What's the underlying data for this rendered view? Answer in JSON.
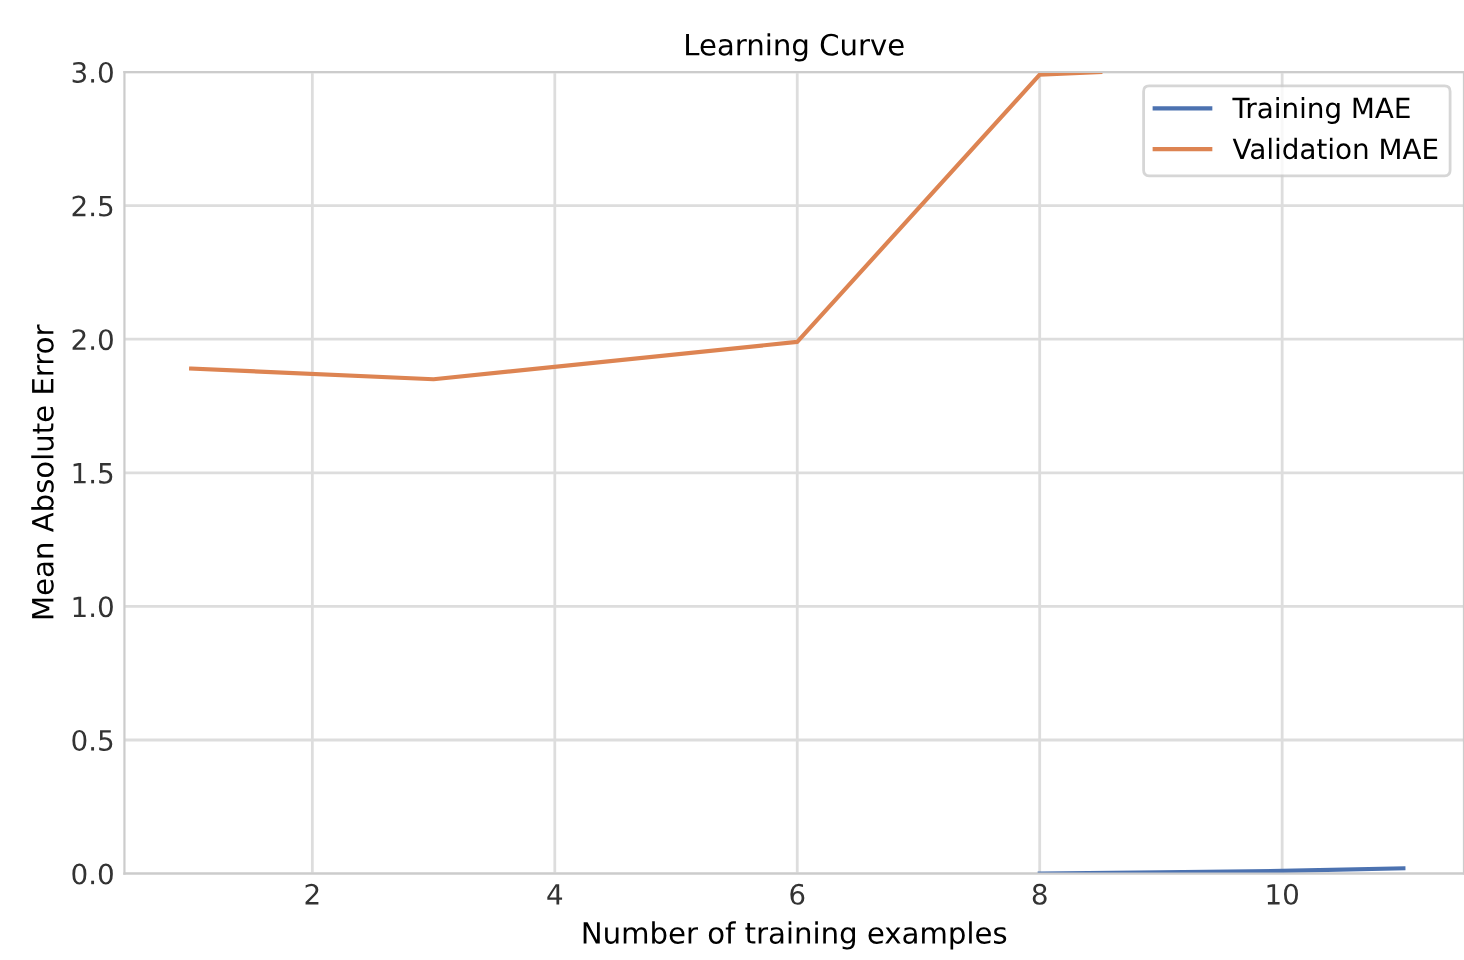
{
  "chart_data": {
    "type": "line",
    "title": "Learning Curve",
    "xlabel": "Number of training examples",
    "ylabel": "Mean Absolute Error",
    "series": [
      {
        "name": "Training MAE",
        "color": "#4c72b0",
        "x": [
          8,
          9,
          10,
          11
        ],
        "values": [
          0,
          0.005,
          0.01,
          0.02
        ]
      },
      {
        "name": "Validation MAE",
        "color": "#dd8452",
        "x": [
          1,
          3,
          6,
          8,
          8.5
        ],
        "values": [
          1.89,
          1.85,
          1.99,
          2.99,
          3.0
        ]
      }
    ],
    "xlim": [
      0.45,
      11.5
    ],
    "xticks": [
      2,
      4,
      6,
      8,
      10
    ],
    "ylim": [
      0,
      3.0
    ],
    "yticks": [
      {
        "value": 0,
        "label": "0.0"
      },
      {
        "value": 0.5,
        "label": "0.5"
      },
      {
        "value": 1,
        "label": "1.0"
      },
      {
        "value": 1.5,
        "label": "1.5"
      },
      {
        "value": 2,
        "label": "2.0"
      },
      {
        "value": 2.5,
        "label": "2.5"
      },
      {
        "value": 3,
        "label": "3.0"
      }
    ],
    "grid": true,
    "legend": "top right"
  }
}
